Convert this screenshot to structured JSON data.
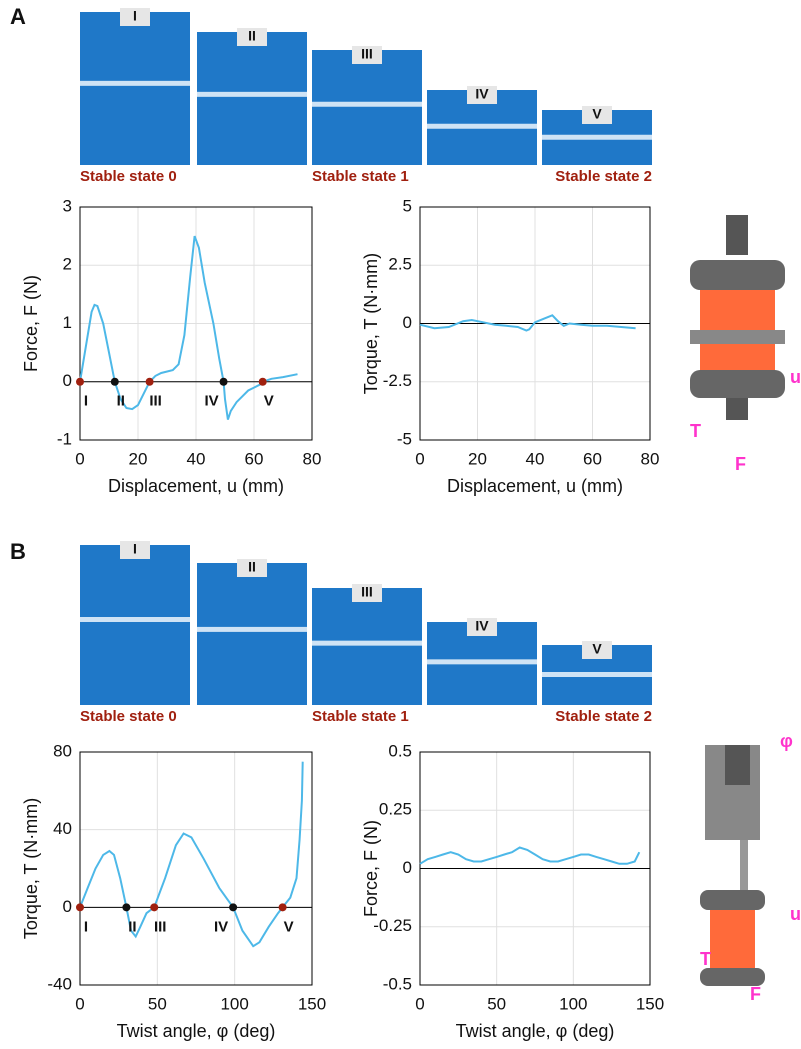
{
  "panels": [
    {
      "letter": "A",
      "photo_labels": [
        "I",
        "II",
        "III",
        "IV",
        "V"
      ],
      "captions": [
        "Stable state 0",
        "Stable state 1",
        "Stable state 2"
      ]
    },
    {
      "letter": "B",
      "photo_labels": [
        "I",
        "II",
        "III",
        "IV",
        "V"
      ],
      "captions": [
        "Stable state 0",
        "Stable state 1",
        "Stable state 2"
      ]
    }
  ],
  "device_labels": {
    "a": [
      "T",
      "F",
      "u"
    ],
    "b": [
      "T",
      "F",
      "u",
      "φ"
    ]
  },
  "chart_data": [
    {
      "type": "line",
      "xlabel": "Displacement, u (mm)",
      "ylabel": "Force, F (N)",
      "xlim": [
        0,
        80
      ],
      "ylim": [
        -1,
        3
      ],
      "xticks": [
        0,
        20,
        40,
        60,
        80
      ],
      "yticks": [
        -1,
        0,
        1,
        2,
        3
      ],
      "grid": true,
      "series": [
        {
          "color": "#4db8e8",
          "x": [
            0,
            2,
            4,
            5,
            6,
            8,
            10,
            12,
            14,
            16,
            18,
            20,
            22,
            24,
            26,
            28,
            32,
            34,
            36,
            38,
            39.5,
            41,
            43,
            46,
            48,
            49.5,
            50,
            51,
            52,
            54,
            56,
            58,
            60,
            62,
            63,
            66,
            70,
            75
          ],
          "values": [
            0,
            0.6,
            1.2,
            1.32,
            1.3,
            1.0,
            0.5,
            0,
            -0.3,
            -0.45,
            -0.47,
            -0.4,
            -0.2,
            0,
            0.1,
            0.15,
            0.2,
            0.3,
            0.8,
            1.8,
            2.5,
            2.3,
            1.7,
            1.0,
            0.4,
            0,
            -0.3,
            -0.65,
            -0.5,
            -0.35,
            -0.25,
            -0.15,
            -0.1,
            -0.05,
            0,
            0.05,
            0.08,
            0.13
          ]
        }
      ],
      "states": {
        "x": [
          0,
          12,
          24,
          49.5,
          63
        ],
        "y": [
          0,
          0,
          0,
          0,
          0
        ],
        "labels": [
          "I",
          "II",
          "III",
          "IV",
          "V"
        ],
        "colors": [
          "#a0200f",
          "#111111",
          "#a0200f",
          "#111111",
          "#a0200f"
        ]
      }
    },
    {
      "type": "line",
      "xlabel": "Displacement, u (mm)",
      "ylabel": "Torque, T (N·mm)",
      "xlim": [
        0,
        80
      ],
      "ylim": [
        -5,
        5
      ],
      "xticks": [
        0,
        20,
        40,
        60,
        80
      ],
      "yticks": [
        -5,
        -2.5,
        0,
        2.5,
        5
      ],
      "grid": true,
      "series": [
        {
          "color": "#4db8e8",
          "x": [
            0,
            5,
            10,
            15,
            18,
            22,
            26,
            30,
            34,
            37,
            38,
            40,
            43,
            46,
            48,
            50,
            52,
            56,
            60,
            65,
            70,
            75
          ],
          "values": [
            -0.05,
            -0.2,
            -0.15,
            0.1,
            0.15,
            0.05,
            -0.05,
            -0.1,
            -0.15,
            -0.3,
            -0.25,
            0.05,
            0.2,
            0.35,
            0.1,
            -0.1,
            0,
            -0.05,
            -0.1,
            -0.1,
            -0.15,
            -0.2
          ]
        }
      ]
    },
    {
      "type": "line",
      "xlabel": "Twist angle, φ (deg)",
      "ylabel": "Torque, T (N·mm)",
      "xlim": [
        0,
        150
      ],
      "ylim": [
        -40,
        80
      ],
      "xticks": [
        0,
        50,
        100,
        150
      ],
      "yticks": [
        -40,
        0,
        40,
        80
      ],
      "grid": true,
      "series": [
        {
          "color": "#4db8e8",
          "x": [
            0,
            5,
            10,
            15,
            19,
            22,
            26,
            30,
            33,
            36,
            39,
            43,
            48,
            55,
            62,
            67,
            72,
            80,
            90,
            99,
            105,
            112,
            116,
            122,
            128,
            131,
            136,
            140,
            142,
            143.5,
            144
          ],
          "values": [
            0,
            10,
            20,
            27,
            29,
            27,
            15,
            0,
            -12,
            -15,
            -10,
            -3,
            0,
            15,
            32,
            38,
            36,
            25,
            10,
            0,
            -12,
            -20,
            -18,
            -10,
            -3,
            0,
            5,
            15,
            35,
            55,
            75
          ]
        }
      ],
      "states": {
        "x": [
          0,
          30,
          48,
          99,
          131
        ],
        "y": [
          0,
          0,
          0,
          0,
          0
        ],
        "labels": [
          "I",
          "II",
          "III",
          "IV",
          "V"
        ],
        "colors": [
          "#a0200f",
          "#111111",
          "#a0200f",
          "#111111",
          "#a0200f"
        ]
      }
    },
    {
      "type": "line",
      "xlabel": "Twist angle, φ (deg)",
      "ylabel": "Force, F (N)",
      "xlim": [
        0,
        150
      ],
      "ylim": [
        -0.5,
        0.5
      ],
      "xticks": [
        0,
        50,
        100,
        150
      ],
      "yticks": [
        -0.5,
        -0.25,
        0,
        0.25,
        0.5
      ],
      "grid": true,
      "series": [
        {
          "color": "#4db8e8",
          "x": [
            0,
            5,
            10,
            15,
            20,
            25,
            30,
            35,
            40,
            45,
            50,
            55,
            60,
            65,
            70,
            75,
            80,
            85,
            90,
            95,
            100,
            105,
            110,
            115,
            120,
            125,
            130,
            135,
            140,
            143
          ],
          "values": [
            0.02,
            0.04,
            0.05,
            0.06,
            0.07,
            0.06,
            0.04,
            0.03,
            0.03,
            0.04,
            0.05,
            0.06,
            0.07,
            0.09,
            0.08,
            0.06,
            0.04,
            0.03,
            0.03,
            0.04,
            0.05,
            0.06,
            0.06,
            0.05,
            0.04,
            0.03,
            0.02,
            0.02,
            0.03,
            0.07
          ]
        }
      ]
    }
  ]
}
